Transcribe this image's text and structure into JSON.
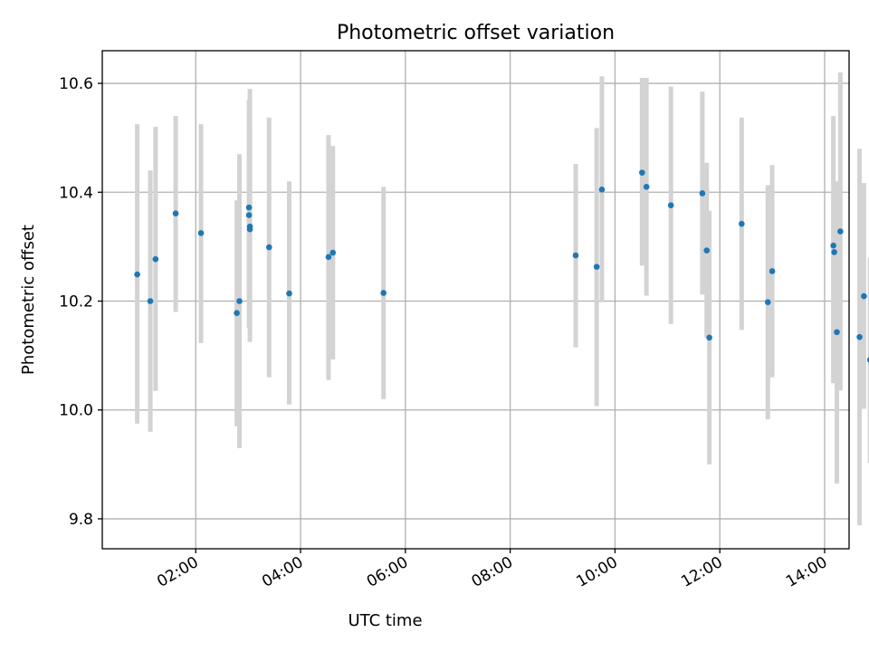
{
  "chart_data": {
    "type": "scatter",
    "title": "Photometric offset variation",
    "xlabel": "UTC time",
    "ylabel": "Photometric offset",
    "xlim": [
      "00:13",
      "14:28"
    ],
    "ylim": [
      9.745,
      10.66
    ],
    "x_ticks": [
      "02:00",
      "04:00",
      "06:00",
      "08:00",
      "10:00",
      "12:00",
      "14:00"
    ],
    "y_ticks": [
      "9.8",
      "10.0",
      "10.2",
      "10.4",
      "10.6"
    ],
    "grid": true,
    "marker_color": "#1f77b4",
    "errorbar_color": "#d3d3d3",
    "points": [
      {
        "x": "00:53",
        "y": 10.249,
        "ylo": 9.975,
        "yhi": 10.525
      },
      {
        "x": "01:08",
        "y": 10.2,
        "ylo": 9.96,
        "yhi": 10.44
      },
      {
        "x": "01:14",
        "y": 10.277,
        "ylo": 10.035,
        "yhi": 10.52
      },
      {
        "x": "01:37",
        "y": 10.361,
        "ylo": 10.18,
        "yhi": 10.54
      },
      {
        "x": "02:06",
        "y": 10.325,
        "ylo": 10.123,
        "yhi": 10.525
      },
      {
        "x": "02:47",
        "y": 10.178,
        "ylo": 9.97,
        "yhi": 10.385
      },
      {
        "x": "02:50",
        "y": 10.2,
        "ylo": 9.93,
        "yhi": 10.47
      },
      {
        "x": "03:01",
        "y": 10.372,
        "ylo": 10.2,
        "yhi": 10.55
      },
      {
        "x": "03:01",
        "y": 10.358,
        "ylo": 10.15,
        "yhi": 10.57
      },
      {
        "x": "03:02",
        "y": 10.337,
        "ylo": 10.125,
        "yhi": 10.59
      },
      {
        "x": "03:02",
        "y": 10.332,
        "ylo": 10.15,
        "yhi": 10.52
      },
      {
        "x": "03:24",
        "y": 10.299,
        "ylo": 10.06,
        "yhi": 10.537
      },
      {
        "x": "03:47",
        "y": 10.214,
        "ylo": 10.01,
        "yhi": 10.42
      },
      {
        "x": "04:32",
        "y": 10.281,
        "ylo": 10.055,
        "yhi": 10.505
      },
      {
        "x": "04:37",
        "y": 10.289,
        "ylo": 10.093,
        "yhi": 10.485
      },
      {
        "x": "05:35",
        "y": 10.215,
        "ylo": 10.02,
        "yhi": 10.41
      },
      {
        "x": "09:15",
        "y": 10.284,
        "ylo": 10.115,
        "yhi": 10.452
      },
      {
        "x": "09:39",
        "y": 10.263,
        "ylo": 10.007,
        "yhi": 10.518
      },
      {
        "x": "09:45",
        "y": 10.405,
        "ylo": 10.198,
        "yhi": 10.613
      },
      {
        "x": "10:31",
        "y": 10.436,
        "ylo": 10.265,
        "yhi": 10.61
      },
      {
        "x": "10:36",
        "y": 10.41,
        "ylo": 10.21,
        "yhi": 10.61
      },
      {
        "x": "11:04",
        "y": 10.376,
        "ylo": 10.158,
        "yhi": 10.594
      },
      {
        "x": "11:40",
        "y": 10.398,
        "ylo": 10.212,
        "yhi": 10.585
      },
      {
        "x": "11:45",
        "y": 10.293,
        "ylo": 10.133,
        "yhi": 10.454
      },
      {
        "x": "11:48",
        "y": 10.133,
        "ylo": 9.9,
        "yhi": 10.366
      },
      {
        "x": "12:25",
        "y": 10.342,
        "ylo": 10.147,
        "yhi": 10.537
      },
      {
        "x": "12:55",
        "y": 10.198,
        "ylo": 9.983,
        "yhi": 10.413
      },
      {
        "x": "13:00",
        "y": 10.255,
        "ylo": 10.06,
        "yhi": 10.45
      },
      {
        "x": "14:10",
        "y": 10.302,
        "ylo": 10.049,
        "yhi": 10.54
      },
      {
        "x": "14:11",
        "y": 10.29,
        "ylo": 10.16,
        "yhi": 10.42
      },
      {
        "x": "14:14",
        "y": 10.143,
        "ylo": 9.865,
        "yhi": 10.42
      },
      {
        "x": "14:18",
        "y": 10.328,
        "ylo": 10.036,
        "yhi": 10.62
      },
      {
        "x": "14:40",
        "y": 10.134,
        "ylo": 9.788,
        "yhi": 10.48
      },
      {
        "x": "14:45",
        "y": 10.209,
        "ylo": 10.002,
        "yhi": 10.417
      },
      {
        "x": "14:52",
        "y": 10.092,
        "ylo": 9.903,
        "yhi": 10.28
      }
    ]
  }
}
